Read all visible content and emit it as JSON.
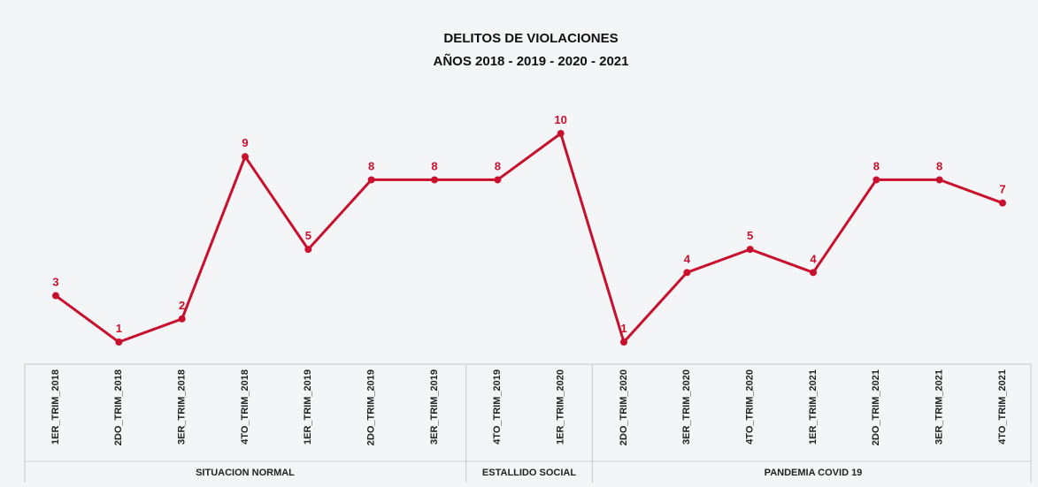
{
  "chart_data": {
    "type": "line",
    "title": "DELITOS DE VIOLACIONES",
    "subtitle": "AÑOS 2018 - 2019 - 2020 - 2021",
    "categories": [
      "1ER_TRIM_2018",
      "2DO_TRIM_2018",
      "3ER_TRIM_2018",
      "4TO_TRIM_2018",
      "1ER_TRIM_2019",
      "2DO_TRIM_2019",
      "3ER_TRIM_2019",
      "4TO_TRIM_2019",
      "1ER_TRIM_2020",
      "2DO_TRIM_2020",
      "3ER_TRIM_2020",
      "4TO_TRIM_2020",
      "1ER_TRIM_2021",
      "2DO_TRIM_2021",
      "3ER_TRIM_2021",
      "4TO_TRIM_2021"
    ],
    "series": [
      {
        "values": [
          3,
          1,
          2,
          9,
          5,
          8,
          8,
          8,
          10,
          1,
          4,
          5,
          4,
          8,
          8,
          7
        ]
      }
    ],
    "groups": [
      {
        "label": "SITUACION NORMAL",
        "start": 0,
        "end": 6
      },
      {
        "label": "ESTALLIDO SOCIAL",
        "start": 7,
        "end": 8
      },
      {
        "label": "PANDEMIA COVID 19",
        "start": 9,
        "end": 15
      }
    ],
    "ylim": [
      1,
      10
    ],
    "grid": false,
    "data_labels": true,
    "color": "#c8102e"
  }
}
